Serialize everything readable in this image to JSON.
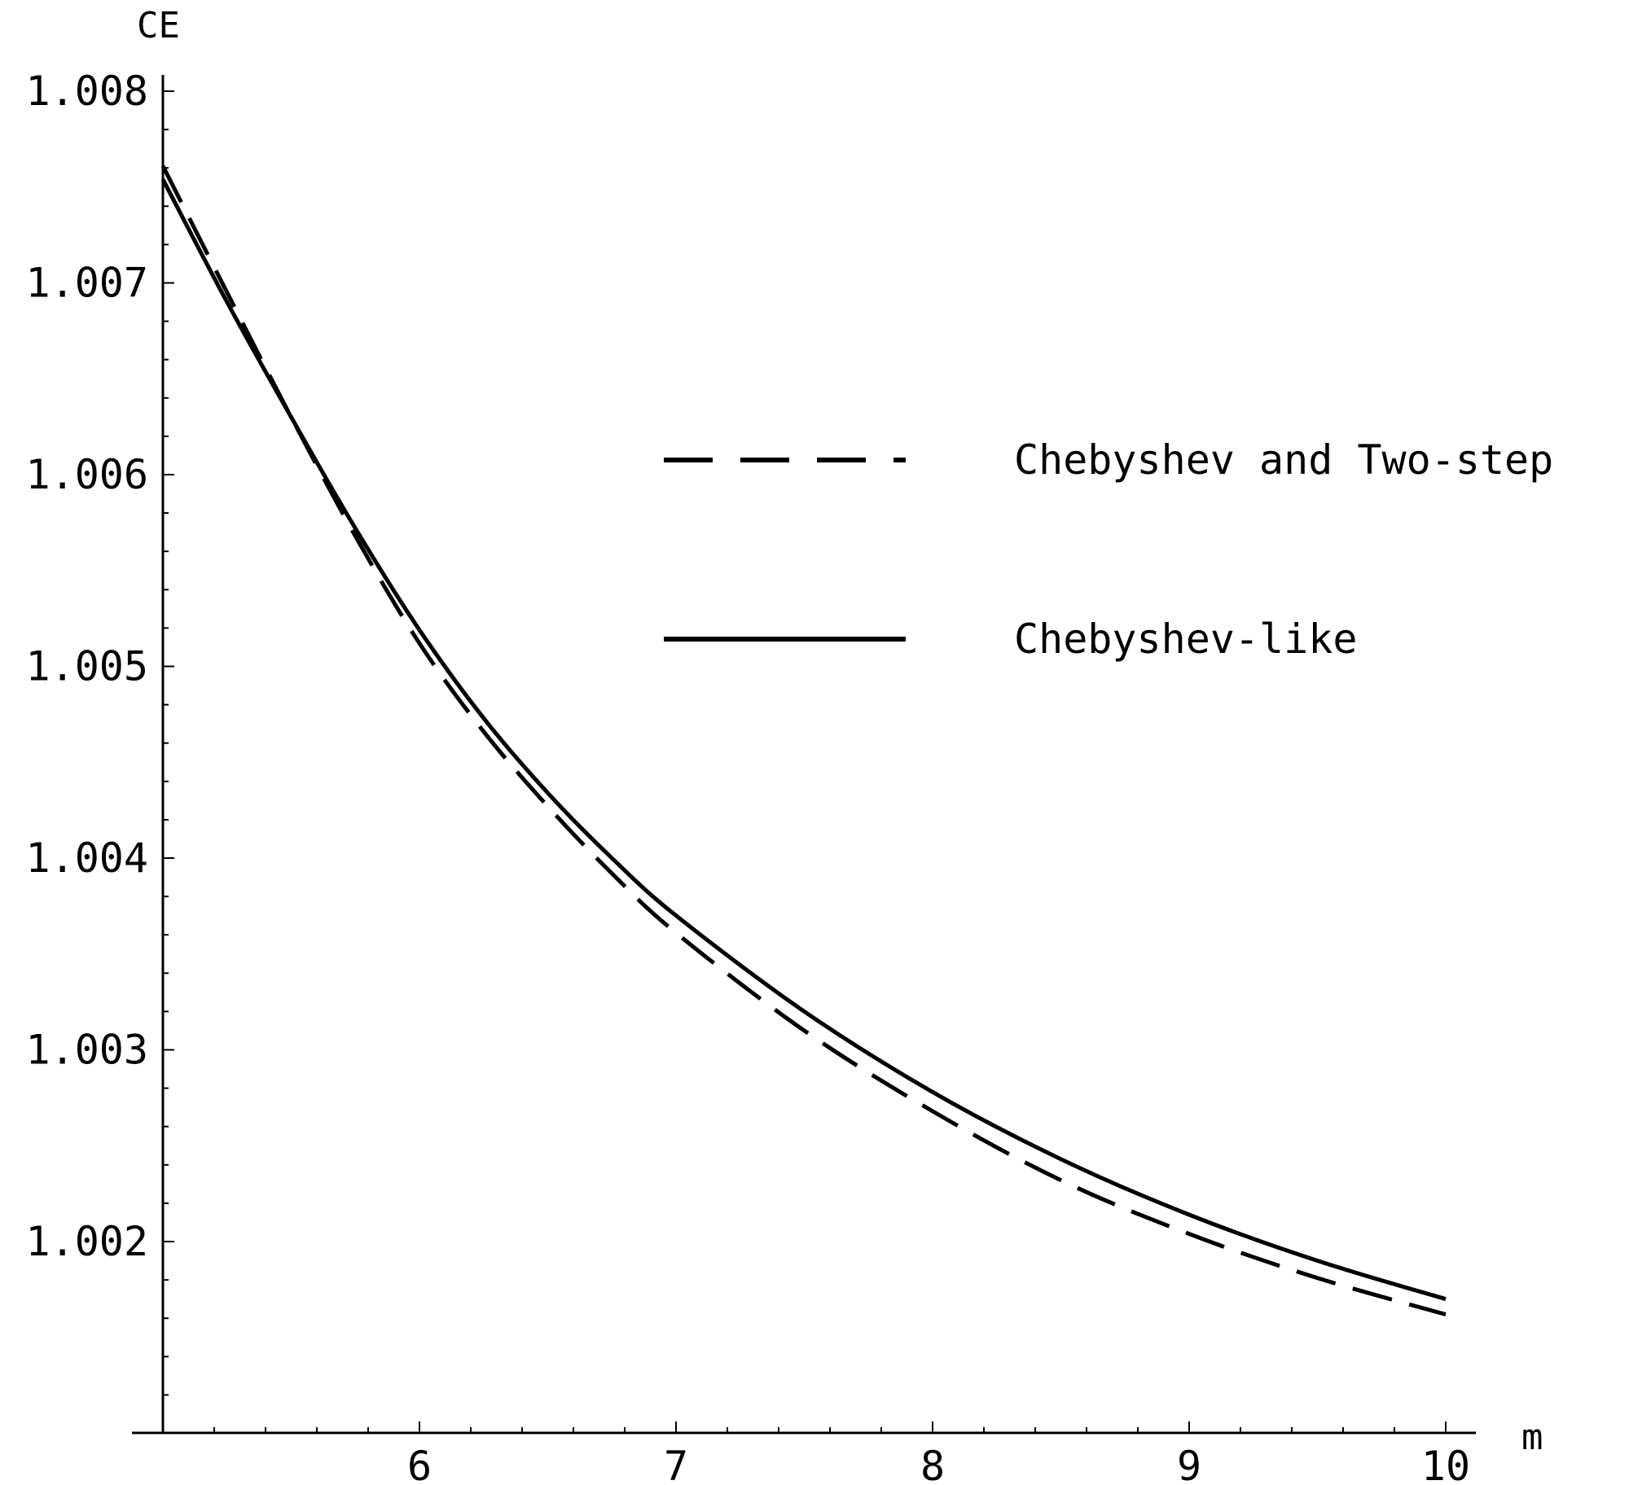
{
  "chart_data": {
    "type": "line",
    "xlabel": "m",
    "ylabel": "CE",
    "xlim": [
      5,
      10.1
    ],
    "ylim": [
      1.001,
      1.008
    ],
    "x_ticks": [
      6,
      7,
      8,
      9,
      10
    ],
    "x_tick_labels": [
      "6",
      "7",
      "8",
      "9",
      "10"
    ],
    "y_ticks": [
      1.002,
      1.003,
      1.004,
      1.005,
      1.006,
      1.007,
      1.008
    ],
    "y_tick_labels": [
      "1.002",
      "1.003",
      "1.004",
      "1.005",
      "1.006",
      "1.007",
      "1.008"
    ],
    "legend_position": "upper-right",
    "series": [
      {
        "name": "Chebyshev and Two-step",
        "style": "dashed",
        "color": "#000000",
        "x": [
          5,
          5.25,
          5.5,
          5.75,
          6,
          6.25,
          6.5,
          6.75,
          7,
          7.5,
          8,
          8.5,
          9,
          9.5,
          10
        ],
        "y": [
          1.00761,
          1.00695,
          1.0063,
          1.00568,
          1.00512,
          1.00466,
          1.00427,
          1.00392,
          1.00361,
          1.0031,
          1.00268,
          1.00232,
          1.00204,
          1.00181,
          1.00162
        ]
      },
      {
        "name": "Chebyshev-like",
        "style": "solid",
        "color": "#000000",
        "x": [
          5,
          5.25,
          5.5,
          5.75,
          6,
          6.25,
          6.5,
          6.75,
          7,
          7.5,
          8,
          8.5,
          9,
          9.5,
          10
        ],
        "y": [
          1.00754,
          1.0069,
          1.0063,
          1.00572,
          1.00519,
          1.00473,
          1.00434,
          1.004,
          1.0037,
          1.0032,
          1.00278,
          1.00243,
          1.00214,
          1.0019,
          1.0017
        ]
      }
    ]
  }
}
